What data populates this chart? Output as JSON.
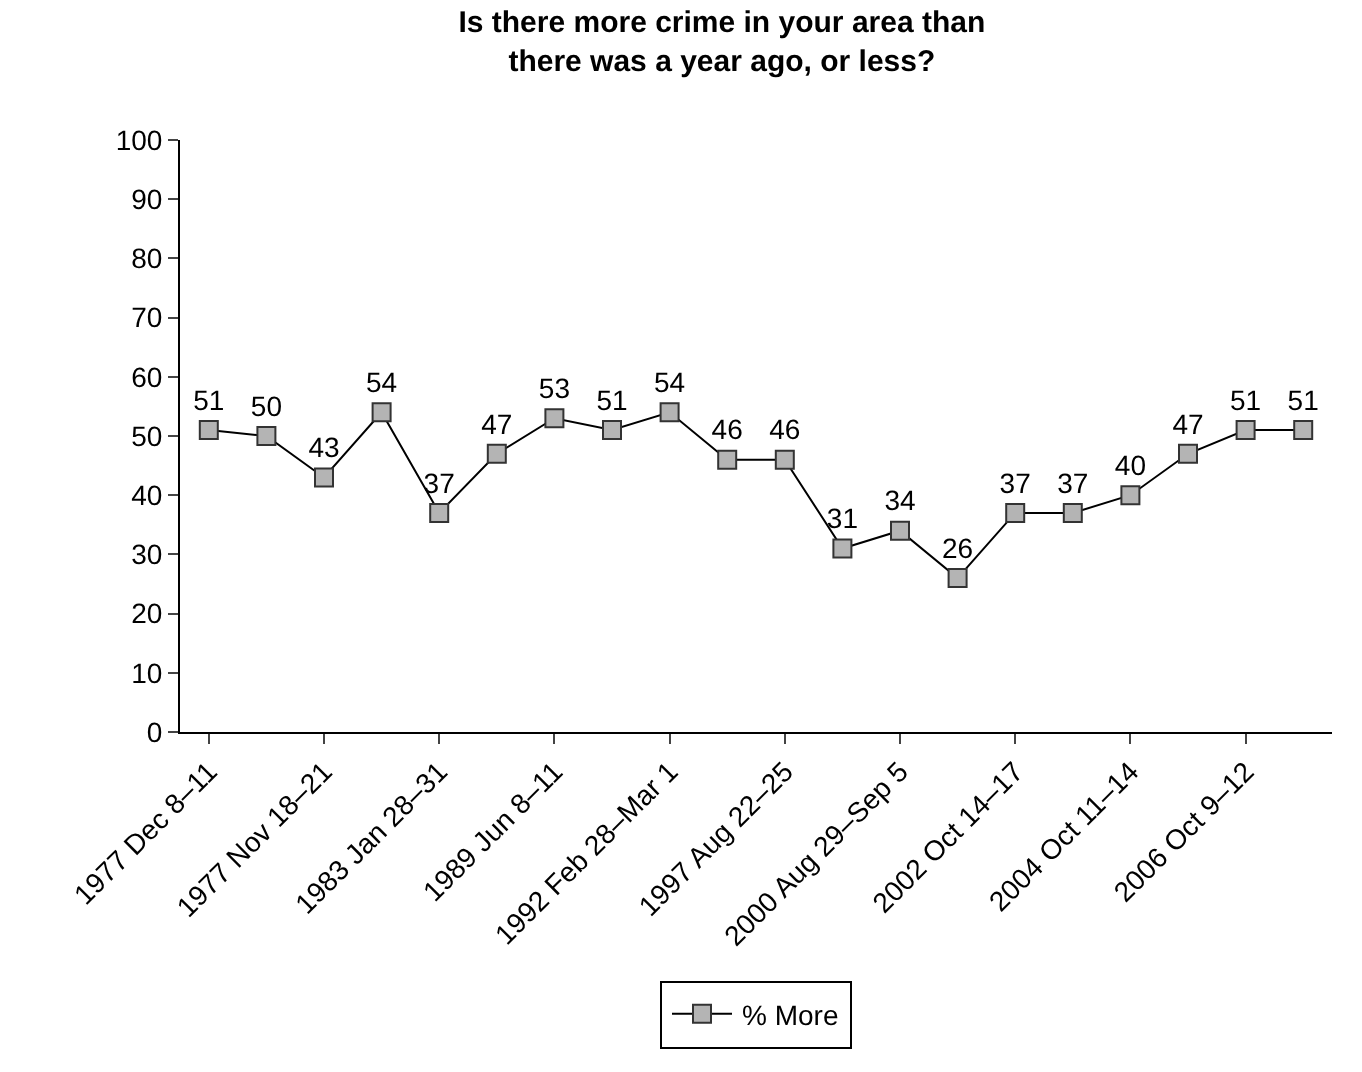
{
  "chart_data": {
    "type": "line",
    "title": "Is there more crime in your area than\nthere was a year ago, or less?",
    "categories": [
      "1977 Dec 8–11",
      null,
      "1977 Nov 18–21",
      null,
      "1983 Jan 28–31",
      null,
      "1989 Jun 8–11",
      null,
      "1992 Feb 28–Mar 1",
      null,
      "1997 Aug 22–25",
      null,
      "2000 Aug 29–Sep 5",
      null,
      "2002 Oct 14–17",
      null,
      "2004 Oct 11–14",
      null,
      "2006 Oct 9–12",
      null
    ],
    "series": [
      {
        "name": "% More",
        "color": "#b4b4b4",
        "values": [
          51,
          50,
          43,
          54,
          37,
          47,
          53,
          51,
          54,
          46,
          46,
          31,
          34,
          26,
          37,
          37,
          40,
          47,
          51,
          51
        ]
      }
    ],
    "ylim": [
      0,
      100
    ],
    "yticks": [
      0,
      10,
      20,
      30,
      40,
      50,
      60,
      70,
      80,
      90,
      100
    ],
    "grid": false,
    "legend": "bottom",
    "marker": "square",
    "line_style": "solid",
    "data_labels": true
  }
}
